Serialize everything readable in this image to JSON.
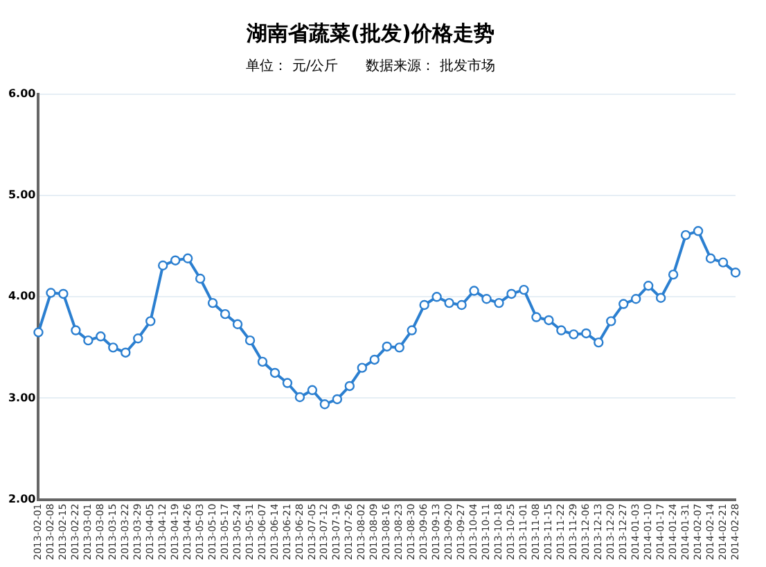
{
  "chart_data": {
    "type": "line",
    "title": "湖南省蔬菜(批发)价格走势",
    "subtitle": "单位： 元/公斤　　数据来源： 批发市场",
    "categories": [
      "2013-02-01",
      "2013-02-08",
      "2013-02-15",
      "2013-02-22",
      "2013-03-01",
      "2013-03-08",
      "2013-03-15",
      "2013-03-22",
      "2013-03-29",
      "2013-04-05",
      "2013-04-12",
      "2013-04-19",
      "2013-04-26",
      "2013-05-03",
      "2013-05-10",
      "2013-05-17",
      "2013-05-24",
      "2013-05-31",
      "2013-06-07",
      "2013-06-14",
      "2013-06-21",
      "2013-06-28",
      "2013-07-05",
      "2013-07-12",
      "2013-07-19",
      "2013-07-26",
      "2013-08-02",
      "2013-08-09",
      "2013-08-16",
      "2013-08-23",
      "2013-08-30",
      "2013-09-06",
      "2013-09-13",
      "2013-09-20",
      "2013-09-27",
      "2013-10-04",
      "2013-10-11",
      "2013-10-18",
      "2013-10-25",
      "2013-11-01",
      "2013-11-08",
      "2013-11-15",
      "2013-11-22",
      "2013-11-29",
      "2013-12-06",
      "2013-12-13",
      "2013-12-20",
      "2013-12-27",
      "2014-01-03",
      "2014-01-10",
      "2014-01-17",
      "2014-01-24",
      "2014-01-31",
      "2014-02-07",
      "2014-02-14",
      "2014-02-21",
      "2014-02-28"
    ],
    "series": [
      {
        "color": "#2b7fd0",
        "values": [
          3.65,
          4.04,
          4.03,
          3.67,
          3.57,
          3.61,
          3.5,
          3.45,
          3.59,
          3.76,
          4.31,
          4.36,
          4.38,
          4.18,
          3.94,
          3.83,
          3.73,
          3.57,
          3.36,
          3.25,
          3.15,
          3.01,
          3.08,
          2.94,
          2.99,
          3.12,
          3.3,
          3.38,
          3.51,
          3.5,
          3.67,
          3.92,
          4.0,
          3.94,
          3.92,
          4.06,
          3.98,
          3.94,
          4.03,
          4.07,
          3.8,
          3.77,
          3.67,
          3.63,
          3.64,
          3.55,
          3.76,
          3.93,
          3.98,
          4.11,
          3.99,
          4.22,
          4.61,
          4.65,
          4.38,
          4.34,
          4.24
        ]
      }
    ],
    "ylim": [
      2,
      6
    ],
    "yticks": [
      {
        "value": 2,
        "label": "2.00"
      },
      {
        "value": 3,
        "label": "3.00"
      },
      {
        "value": 4,
        "label": "4.00"
      },
      {
        "value": 5,
        "label": "5.00"
      },
      {
        "value": 6,
        "label": "6.00"
      }
    ],
    "grid": "y",
    "marker": "circle",
    "line_style": "solid",
    "legend": false
  }
}
